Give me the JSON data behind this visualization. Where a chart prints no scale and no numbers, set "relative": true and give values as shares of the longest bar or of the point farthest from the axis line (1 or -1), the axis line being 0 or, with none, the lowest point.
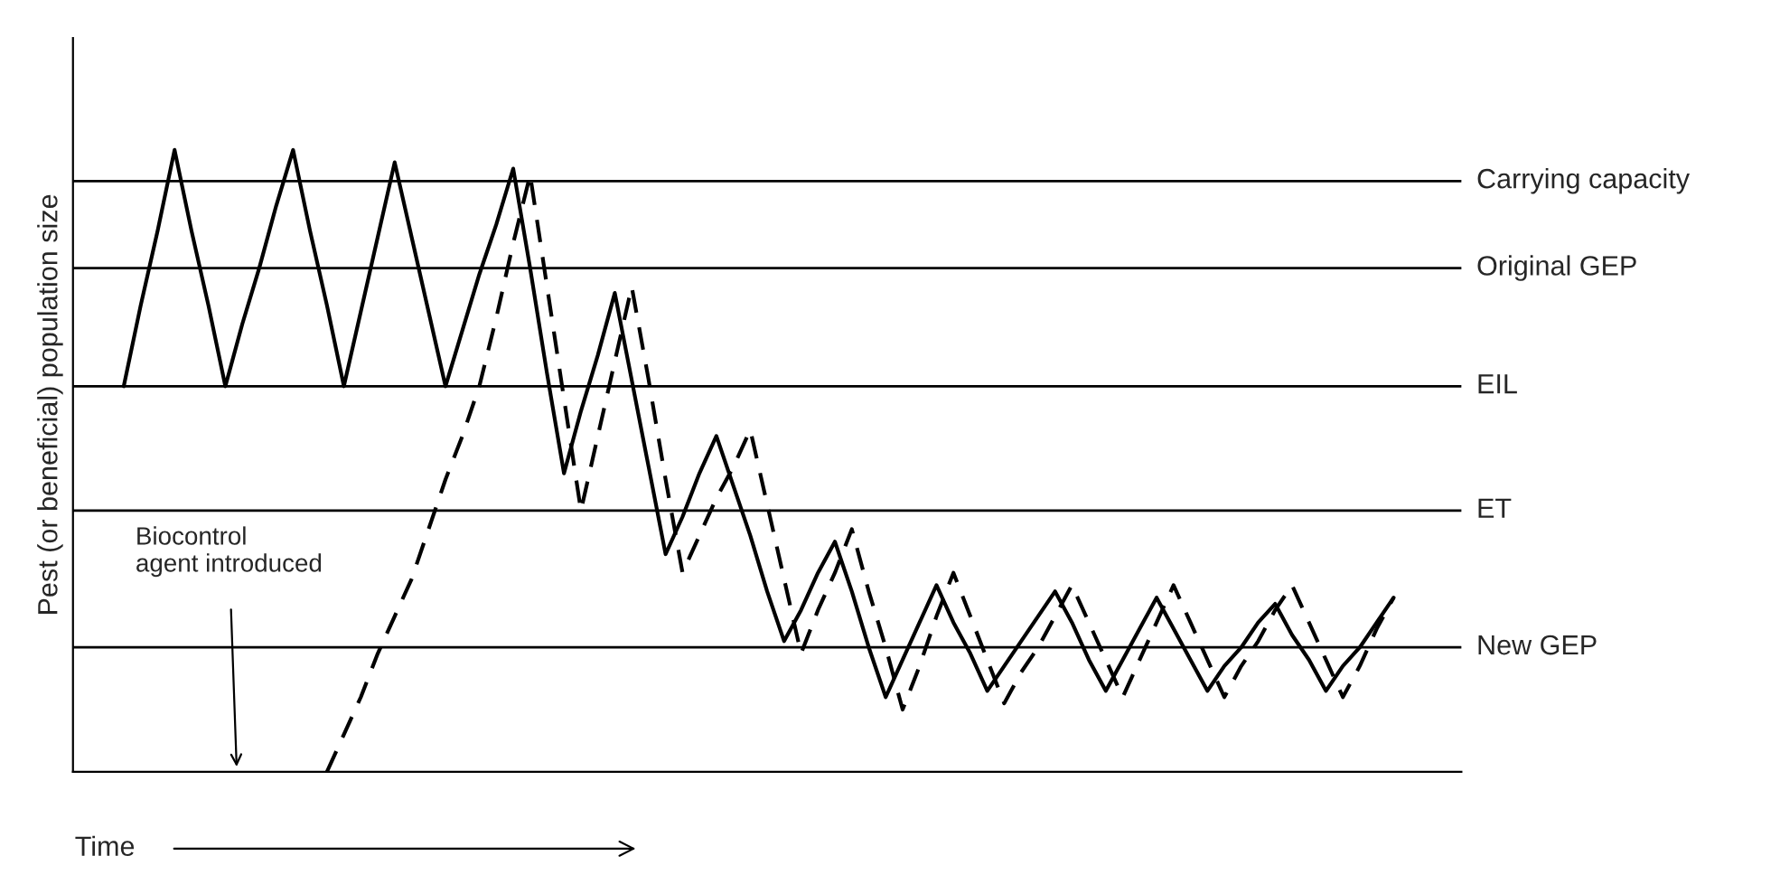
{
  "chart_data": {
    "type": "line",
    "relative": true,
    "ylabel": "Pest (or beneficial) population size",
    "xlabel": "Time",
    "categories": [
      null,
      null,
      null,
      null,
      null,
      null,
      null,
      null,
      null,
      null,
      null,
      null,
      null,
      null,
      null,
      null,
      null,
      null,
      null,
      null,
      null,
      null,
      null,
      null,
      null,
      null,
      null,
      null,
      null,
      null,
      null,
      null,
      null,
      null,
      null,
      null,
      null,
      null,
      null,
      null,
      null,
      null,
      null,
      null,
      null,
      null,
      null,
      null,
      null,
      null,
      null,
      null,
      null,
      null,
      null,
      null,
      null,
      null,
      null,
      null,
      null,
      null,
      null,
      null,
      null,
      null,
      null,
      null,
      null,
      null,
      null,
      null,
      null,
      null,
      null,
      null
    ],
    "series": [
      {
        "color": "#000000",
        "line_style": "solid",
        "values": [
          0.62,
          0.75,
          0.87,
          1.0,
          0.87,
          0.75,
          0.62,
          0.72,
          0.81,
          0.91,
          1.0,
          0.87,
          0.75,
          0.62,
          0.74,
          0.86,
          0.98,
          0.86,
          0.74,
          0.62,
          0.71,
          0.8,
          0.88,
          0.97,
          0.81,
          0.64,
          0.48,
          0.58,
          0.67,
          0.77,
          0.63,
          0.49,
          0.35,
          0.41,
          0.48,
          0.54,
          0.46,
          0.38,
          0.29,
          0.21,
          0.26,
          0.32,
          0.37,
          0.29,
          0.2,
          0.12,
          0.18,
          0.24,
          0.3,
          0.24,
          0.19,
          0.13,
          0.17,
          0.21,
          0.25,
          0.29,
          0.24,
          0.18,
          0.13,
          0.18,
          0.23,
          0.28,
          0.23,
          0.18,
          0.13,
          0.17,
          0.2,
          0.24,
          0.27,
          0.22,
          0.18,
          0.13,
          0.17,
          0.2,
          0.24,
          0.28
        ]
      },
      {
        "color": "#000000",
        "line_style": "dashed",
        "values": [
          null,
          null,
          null,
          null,
          null,
          null,
          null,
          null,
          null,
          null,
          null,
          null,
          0,
          0.06,
          0.12,
          0.19,
          0.25,
          0.31,
          0.39,
          0.47,
          0.54,
          0.62,
          0.73,
          0.85,
          0.96,
          0.78,
          0.6,
          0.42,
          0.54,
          0.66,
          0.78,
          0.63,
          0.47,
          0.32,
          0.38,
          0.44,
          0.49,
          0.55,
          0.43,
          0.31,
          0.19,
          0.26,
          0.32,
          0.39,
          0.29,
          0.2,
          0.1,
          0.17,
          0.25,
          0.32,
          0.25,
          0.18,
          0.11,
          0.16,
          0.2,
          0.25,
          0.3,
          0.24,
          0.18,
          0.12,
          0.18,
          0.24,
          0.3,
          0.24,
          0.18,
          0.12,
          0.17,
          0.21,
          0.26,
          0.3,
          0.24,
          0.18,
          0.12,
          0.17,
          0.23,
          0.28
        ]
      }
    ],
    "ref_lines": [
      {
        "axis": "y",
        "value": 0.95,
        "label": "Carrying capacity",
        "color": "#000000"
      },
      {
        "axis": "y",
        "value": 0.81,
        "label": "Original GEP",
        "color": "#000000"
      },
      {
        "axis": "y",
        "value": 0.62,
        "label": "EIL",
        "color": "#000000"
      },
      {
        "axis": "y",
        "value": 0.42,
        "label": "ET",
        "color": "#000000"
      },
      {
        "axis": "y",
        "value": 0.2,
        "label": "New GEP",
        "color": "#000000"
      }
    ],
    "annotations": [
      "Biocontrol\nagent introduced"
    ]
  }
}
